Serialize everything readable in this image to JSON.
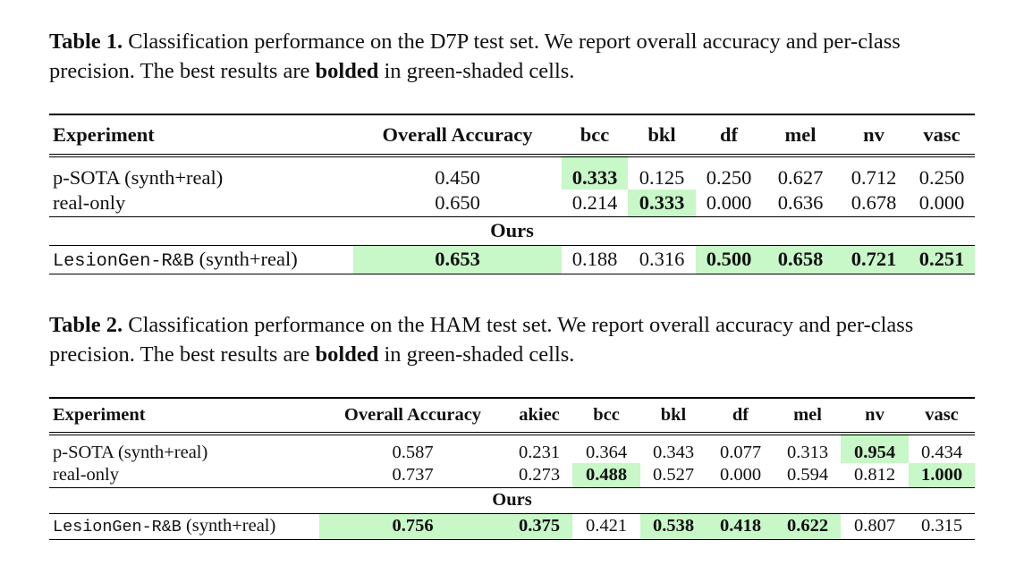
{
  "tables": [
    {
      "caption": {
        "label": "Table 1.",
        "text": "Classification performance on the D7P test set. We report overall accuracy and per-class precision. The best results are",
        "emphasis": "bolded",
        "tail": "in green-shaded cells."
      },
      "columns": [
        "Experiment",
        "Overall Accuracy",
        "bcc",
        "bkl",
        "df",
        "mel",
        "nv",
        "vasc"
      ],
      "rows": [
        {
          "name": "p-SOTA (synth+real)",
          "values": [
            "0.450",
            "0.333",
            "0.125",
            "0.250",
            "0.627",
            "0.712",
            "0.250"
          ],
          "best": [
            1
          ]
        },
        {
          "name": "real-only",
          "values": [
            "0.650",
            "0.214",
            "0.333",
            "0.000",
            "0.636",
            "0.678",
            "0.000"
          ],
          "best": [
            2
          ]
        }
      ],
      "section": "Ours",
      "ours": {
        "method": "LesionGen-R&B",
        "setting": "(synth+real)",
        "values": [
          "0.653",
          "0.188",
          "0.316",
          "0.500",
          "0.658",
          "0.721",
          "0.251"
        ],
        "best": [
          0,
          3,
          4,
          5,
          6
        ]
      }
    },
    {
      "caption": {
        "label": "Table 2.",
        "text": "Classification performance on the HAM test set. We report overall accuracy and per-class precision. The best results are",
        "emphasis": "bolded",
        "tail": "in green-shaded cells."
      },
      "columns": [
        "Experiment",
        "Overall Accuracy",
        "akiec",
        "bcc",
        "bkl",
        "df",
        "mel",
        "nv",
        "vasc"
      ],
      "rows": [
        {
          "name": "p-SOTA (synth+real)",
          "values": [
            "0.587",
            "0.231",
            "0.364",
            "0.343",
            "0.077",
            "0.313",
            "0.954",
            "0.434"
          ],
          "best": [
            6
          ]
        },
        {
          "name": "real-only",
          "values": [
            "0.737",
            "0.273",
            "0.488",
            "0.527",
            "0.000",
            "0.594",
            "0.812",
            "1.000"
          ],
          "best": [
            2,
            7
          ]
        }
      ],
      "section": "Ours",
      "ours": {
        "method": "LesionGen-R&B",
        "setting": "(synth+real)",
        "values": [
          "0.756",
          "0.375",
          "0.421",
          "0.538",
          "0.418",
          "0.622",
          "0.807",
          "0.315"
        ],
        "best": [
          0,
          1,
          3,
          4,
          5
        ]
      }
    }
  ]
}
